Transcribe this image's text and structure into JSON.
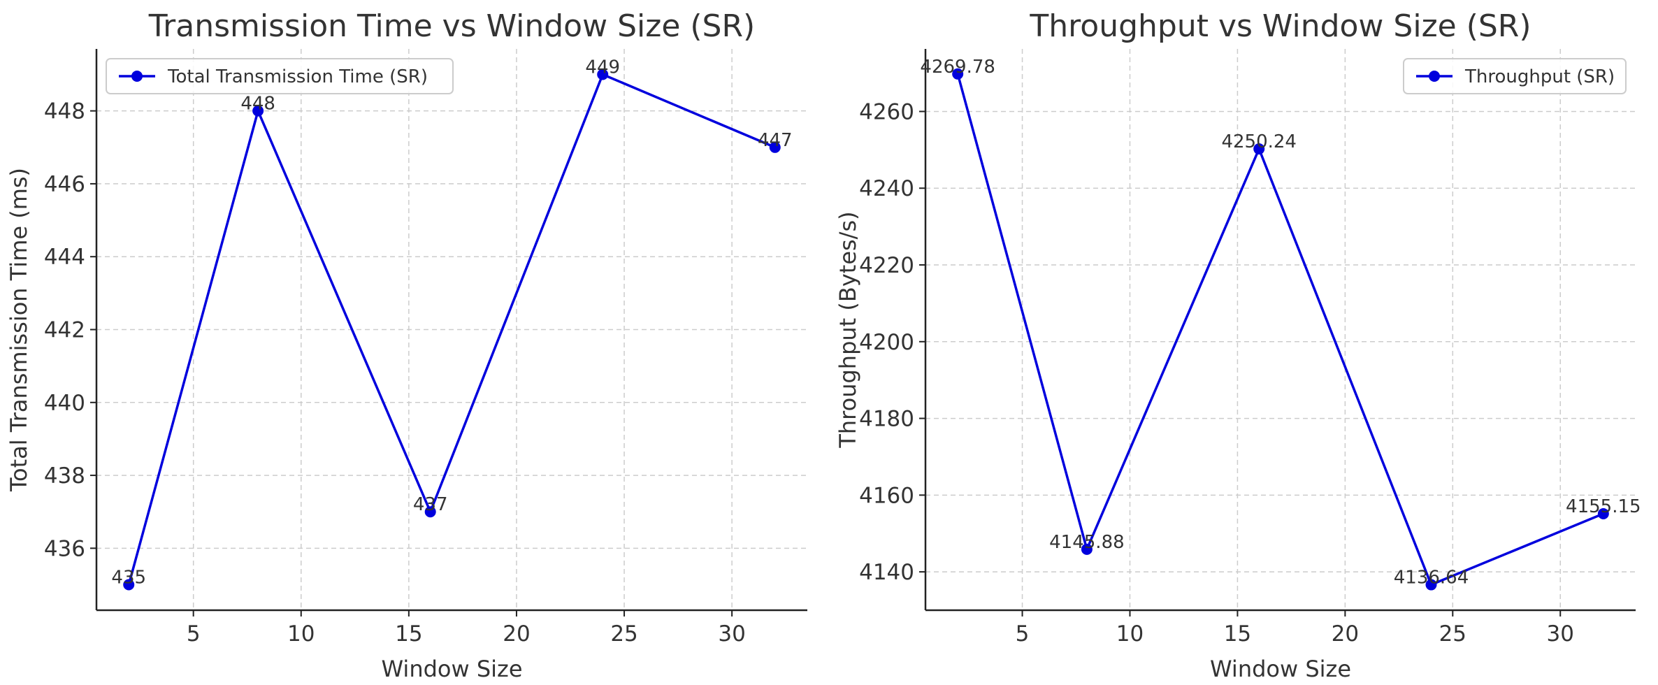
{
  "chart_data": [
    {
      "type": "line",
      "title": "Transmission Time vs Window Size (SR)",
      "xlabel": "Window Size",
      "ylabel": "Total Transmission Time (ms)",
      "x": [
        2,
        8,
        16,
        24,
        32
      ],
      "series": [
        {
          "name": "Total Transmission Time (SR)",
          "color": "#0000dd",
          "values": [
            435,
            448,
            437,
            449,
            447
          ],
          "labels": [
            "435",
            "448",
            "437",
            "449",
            "447"
          ]
        }
      ],
      "xlim": [
        0.5,
        33.5
      ],
      "ylim": [
        434.3,
        449.7
      ],
      "xticks": [
        5,
        10,
        15,
        20,
        25,
        30
      ],
      "yticks": [
        436,
        438,
        440,
        442,
        444,
        446,
        448
      ],
      "xtick_labels": [
        "5",
        "10",
        "15",
        "20",
        "25",
        "30"
      ],
      "ytick_labels": [
        "436",
        "438",
        "440",
        "442",
        "444",
        "446",
        "448"
      ],
      "grid": true,
      "legend_position": "upper-left"
    },
    {
      "type": "line",
      "title": "Throughput vs Window Size (SR)",
      "xlabel": "Window Size",
      "ylabel": "Throughput (Bytes/s)",
      "x": [
        2,
        8,
        16,
        24,
        32
      ],
      "series": [
        {
          "name": "Throughput (SR)",
          "color": "#0000dd",
          "values": [
            4269.78,
            4145.88,
            4250.24,
            4136.64,
            4155.15
          ],
          "labels": [
            "4269.78",
            "4145.88",
            "4250.24",
            "4136.64",
            "4155.15"
          ]
        }
      ],
      "xlim": [
        0.5,
        33.5
      ],
      "ylim": [
        4130.0,
        4276.3
      ],
      "xticks": [
        5,
        10,
        15,
        20,
        25,
        30
      ],
      "yticks": [
        4140,
        4160,
        4180,
        4200,
        4220,
        4240,
        4260
      ],
      "xtick_labels": [
        "5",
        "10",
        "15",
        "20",
        "25",
        "30"
      ],
      "ytick_labels": [
        "4140",
        "4160",
        "4180",
        "4200",
        "4220",
        "4240",
        "4260"
      ],
      "grid": true,
      "legend_position": "upper-right"
    }
  ]
}
